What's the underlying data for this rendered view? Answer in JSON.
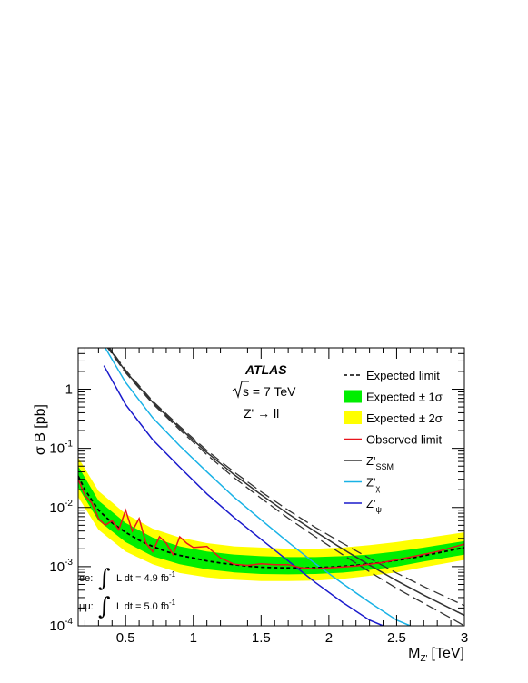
{
  "chart_data": {
    "type": "line",
    "xlabel_main": "M",
    "xlabel_sub": "Z'",
    "xlabel_unit": "[TeV]",
    "ylabel": "σ B [pb]",
    "xlim": [
      0.15,
      3.0
    ],
    "ylim": [
      0.0001,
      5
    ],
    "yscale": "log",
    "x_ticks": [
      {
        "value": 0.5,
        "label": "0.5"
      },
      {
        "value": 1.0,
        "label": "1"
      },
      {
        "value": 1.5,
        "label": "1.5"
      },
      {
        "value": 2.0,
        "label": "2"
      },
      {
        "value": 2.5,
        "label": "2.5"
      },
      {
        "value": 3.0,
        "label": "3"
      }
    ],
    "y_ticks": [
      {
        "value": 0.0001,
        "base": "10",
        "exp": "-4"
      },
      {
        "value": 0.001,
        "base": "10",
        "exp": "-3"
      },
      {
        "value": 0.01,
        "base": "10",
        "exp": "-2"
      },
      {
        "value": 0.1,
        "base": "10",
        "exp": "-1"
      },
      {
        "value": 1,
        "base": "1",
        "exp": ""
      }
    ],
    "atlas_label": "ATLAS",
    "energy_label": "s = 7 TeV",
    "process_label": "Z' → ll",
    "lumi_ee": {
      "channel": "ee:",
      "text": "L dt = 4.9 fb",
      "exp": "-1"
    },
    "lumi_mumu": {
      "channel": "μμ:",
      "text": "L dt = 5.0 fb",
      "exp": "-1"
    },
    "colors": {
      "band2": "#ffff00",
      "band1": "#00ee00",
      "observed": "#e8141c",
      "ssm": "#333333",
      "chi": "#19b2e6",
      "psi": "#1a1acc",
      "expected": "#000000"
    },
    "legend": [
      {
        "key": "expected",
        "label": "Expected limit",
        "sub": ""
      },
      {
        "key": "band1",
        "label": "Expected ± 1σ",
        "sub": ""
      },
      {
        "key": "band2",
        "label": "Expected ± 2σ",
        "sub": ""
      },
      {
        "key": "observed",
        "label": "Observed limit",
        "sub": ""
      },
      {
        "key": "ssm",
        "label": "Z'",
        "sub": "SSM"
      },
      {
        "key": "chi",
        "label": "Z'",
        "sub": "χ"
      },
      {
        "key": "psi",
        "label": "Z'",
        "sub": "ψ"
      }
    ],
    "expected_limit": {
      "x": [
        0.15,
        0.2,
        0.3,
        0.4,
        0.5,
        0.6,
        0.7,
        0.8,
        0.9,
        1.0,
        1.1,
        1.2,
        1.3,
        1.4,
        1.5,
        1.6,
        1.7,
        1.8,
        1.9,
        2.0,
        2.2,
        2.4,
        2.6,
        2.8,
        3.0
      ],
      "y": [
        0.034,
        0.02,
        0.009,
        0.0055,
        0.0038,
        0.0028,
        0.0022,
        0.0018,
        0.00155,
        0.0014,
        0.00125,
        0.00115,
        0.00108,
        0.00102,
        0.00098,
        0.00096,
        0.00095,
        0.00095,
        0.00096,
        0.00098,
        0.00105,
        0.00118,
        0.00138,
        0.0017,
        0.0021
      ]
    },
    "band_1sigma": {
      "x": [
        0.15,
        0.3,
        0.5,
        0.7,
        0.9,
        1.1,
        1.3,
        1.5,
        1.7,
        1.9,
        2.1,
        2.3,
        2.5,
        2.7,
        3.0
      ],
      "low": [
        0.022,
        0.006,
        0.0026,
        0.0015,
        0.0011,
        0.0009,
        0.0008,
        0.00075,
        0.00074,
        0.00075,
        0.00079,
        0.00088,
        0.001,
        0.00122,
        0.0016
      ],
      "high": [
        0.05,
        0.013,
        0.0055,
        0.0031,
        0.0022,
        0.0018,
        0.0016,
        0.0015,
        0.00145,
        0.00145,
        0.0015,
        0.0016,
        0.0018,
        0.0021,
        0.0027
      ]
    },
    "band_2sigma": {
      "x": [
        0.15,
        0.3,
        0.5,
        0.7,
        0.9,
        1.1,
        1.3,
        1.5,
        1.7,
        1.9,
        2.1,
        2.3,
        2.5,
        2.7,
        3.0
      ],
      "low": [
        0.015,
        0.0042,
        0.0018,
        0.0011,
        0.00078,
        0.00066,
        0.0006,
        0.00057,
        0.00057,
        0.00058,
        0.00062,
        0.0007,
        0.0008,
        0.00098,
        0.0013
      ],
      "high": [
        0.07,
        0.019,
        0.0078,
        0.0044,
        0.0031,
        0.0025,
        0.0022,
        0.0021,
        0.002,
        0.002,
        0.0021,
        0.0023,
        0.0026,
        0.003,
        0.0038
      ]
    },
    "observed_limit": {
      "x": [
        0.15,
        0.2,
        0.25,
        0.3,
        0.35,
        0.4,
        0.45,
        0.5,
        0.55,
        0.6,
        0.65,
        0.7,
        0.75,
        0.8,
        0.85,
        0.9,
        0.95,
        1.0,
        1.1,
        1.2,
        1.3,
        1.4,
        1.5,
        1.6,
        1.7,
        1.8,
        1.9,
        2.0,
        2.2,
        2.4,
        2.6,
        2.8,
        3.0
      ],
      "y": [
        0.03,
        0.016,
        0.012,
        0.0065,
        0.005,
        0.006,
        0.0042,
        0.009,
        0.004,
        0.0065,
        0.0025,
        0.0018,
        0.0032,
        0.0025,
        0.0016,
        0.0032,
        0.0025,
        0.0021,
        0.0022,
        0.0014,
        0.0011,
        0.00105,
        0.00112,
        0.00108,
        0.00108,
        0.00095,
        0.00092,
        0.00095,
        0.00102,
        0.00118,
        0.00145,
        0.0018,
        0.0024
      ]
    },
    "theory_ssm": {
      "x": [
        0.35,
        0.5,
        0.7,
        0.9,
        1.1,
        1.3,
        1.5,
        1.7,
        1.9,
        2.1,
        2.3,
        2.5,
        2.7,
        2.9,
        3.0
      ],
      "central": [
        6.0,
        2.0,
        0.6,
        0.22,
        0.085,
        0.036,
        0.0165,
        0.0078,
        0.0039,
        0.002,
        0.00106,
        0.00058,
        0.00033,
        0.000195,
        0.00015
      ],
      "low": [
        5.7,
        1.9,
        0.57,
        0.205,
        0.078,
        0.032,
        0.0143,
        0.0066,
        0.0032,
        0.0016,
        0.00082,
        0.00043,
        0.00024,
        0.000135,
        0.0001
      ],
      "high": [
        6.3,
        2.1,
        0.63,
        0.235,
        0.092,
        0.04,
        0.0185,
        0.009,
        0.0046,
        0.0025,
        0.00138,
        0.00078,
        0.00046,
        0.00028,
        0.00022
      ]
    },
    "theory_chi": {
      "x": [
        0.35,
        0.5,
        0.7,
        0.9,
        1.1,
        1.3,
        1.5,
        1.7,
        1.9,
        2.1,
        2.3,
        2.5,
        2.6
      ],
      "y": [
        5.0,
        1.3,
        0.33,
        0.11,
        0.04,
        0.015,
        0.0062,
        0.0026,
        0.00112,
        0.00052,
        0.00025,
        0.000125,
        0.0001
      ]
    },
    "theory_psi": {
      "x": [
        0.34,
        0.5,
        0.7,
        0.9,
        1.1,
        1.3,
        1.5,
        1.7,
        1.9,
        2.1,
        2.3,
        2.4
      ],
      "y": [
        2.5,
        0.55,
        0.14,
        0.048,
        0.017,
        0.0068,
        0.0029,
        0.00125,
        0.00054,
        0.00025,
        0.000125,
        0.0001
      ]
    }
  }
}
